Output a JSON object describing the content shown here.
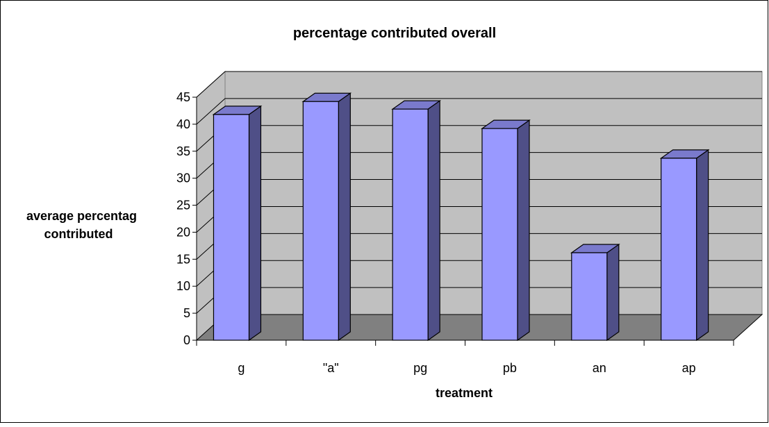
{
  "chart_data": {
    "type": "bar",
    "style": "3d-column",
    "title": "percentage contributed overall",
    "xlabel": "treatment",
    "ylabel_lines": [
      "average percentag",
      "contributed"
    ],
    "categories": [
      "g",
      "\"a\"",
      "pg",
      "pb",
      "an",
      "ap"
    ],
    "values": [
      41.8,
      44.2,
      42.8,
      39.2,
      16.2,
      33.7
    ],
    "ylim": [
      0,
      45
    ],
    "yticks": [
      0,
      5,
      10,
      15,
      20,
      25,
      30,
      35,
      40,
      45
    ],
    "grid": true,
    "legend": "none",
    "colors": {
      "bar_front": "#9999ff",
      "bar_side": "#4f4f87",
      "bar_top": "#7a7acc",
      "wall": "#c0c0c0",
      "floor": "#808080",
      "gridline": "#000000"
    }
  }
}
